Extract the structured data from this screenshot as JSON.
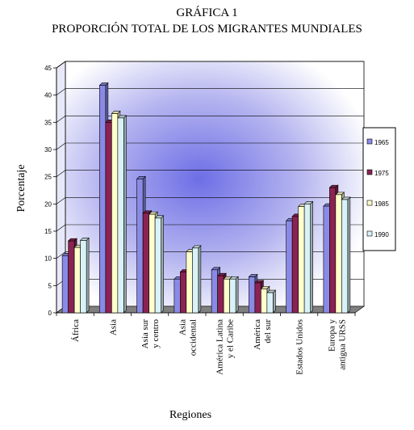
{
  "chart_title_line1": "GRÁFICA 1",
  "chart_title_line2": "PROPORCIÓN TOTAL DE LOS MIGRANTES MUNDIALES",
  "chart_data": {
    "type": "bar",
    "title": "GRÁFICA 1 PROPORCIÓN TOTAL DE LOS MIGRANTES MUNDIALES",
    "xlabel": "Regiones",
    "ylabel": "Porcentaje",
    "ylim": [
      0,
      45
    ],
    "yticks": [
      "0",
      "5",
      "10",
      "15",
      "20",
      "25",
      "30",
      "35",
      "40",
      "45"
    ],
    "categories": [
      [
        "África"
      ],
      [
        "Asia"
      ],
      [
        "Asia sur",
        "y centro"
      ],
      [
        "Asia",
        "occidental"
      ],
      [
        "América Latina",
        "y el Caribe"
      ],
      [
        "América",
        "del sur"
      ],
      [
        "Estados Unidos"
      ],
      [
        "Europa y",
        "antigua URSS"
      ]
    ],
    "series": [
      {
        "name": "1965",
        "color": "#8a8ae6",
        "values": [
          10.5,
          41.8,
          24.6,
          6.2,
          7.9,
          6.6,
          16.9,
          19.6
        ]
      },
      {
        "name": "1975",
        "color": "#8b2252",
        "values": [
          13.2,
          35.0,
          18.3,
          7.5,
          6.8,
          5.5,
          17.7,
          23.0
        ]
      },
      {
        "name": "1985",
        "color": "#ffffcc",
        "values": [
          12.0,
          36.6,
          18.1,
          11.2,
          6.2,
          4.4,
          19.5,
          21.7
        ]
      },
      {
        "name": "1990",
        "color": "#d9f2f7",
        "values": [
          13.3,
          35.8,
          17.4,
          11.9,
          6.2,
          3.7,
          20.0,
          20.8
        ]
      }
    ],
    "grid": true,
    "legend": "right"
  }
}
